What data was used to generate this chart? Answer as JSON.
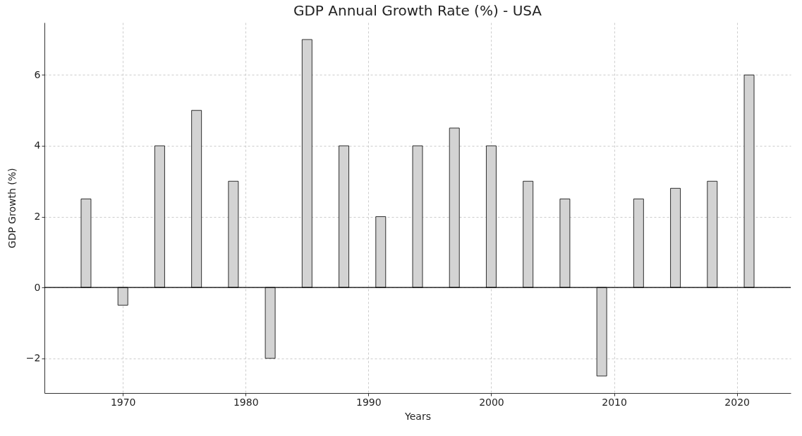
{
  "chart_data": {
    "type": "bar",
    "title": "GDP Annual Growth Rate (%) - USA",
    "xlabel": "Years",
    "ylabel": "GDP Growth (%)",
    "x": [
      1967,
      1970,
      1973,
      1976,
      1979,
      1982,
      1985,
      1988,
      1991,
      1994,
      1997,
      2000,
      2003,
      2006,
      2009,
      2012,
      2015,
      2018,
      2021
    ],
    "values": [
      2.5,
      -0.5,
      4,
      5,
      3,
      -2,
      7,
      4,
      2,
      4,
      4.5,
      4,
      3,
      2.5,
      -2.5,
      2.5,
      2.8,
      3,
      6
    ],
    "color": "#d3d3d3",
    "xlim": [
      1963.9,
      2024.1
    ],
    "xticks": [
      1970,
      1980,
      1990,
      2000,
      2010,
      2020
    ],
    "ylim": [
      -2.98,
      7.48
    ],
    "yticks": [
      {
        "value": -2,
        "label": "−2"
      },
      0,
      2,
      4,
      6
    ],
    "grid": true,
    "ref_lines": [
      {
        "axis": "y",
        "value": 0,
        "color": "#000000"
      }
    ]
  }
}
